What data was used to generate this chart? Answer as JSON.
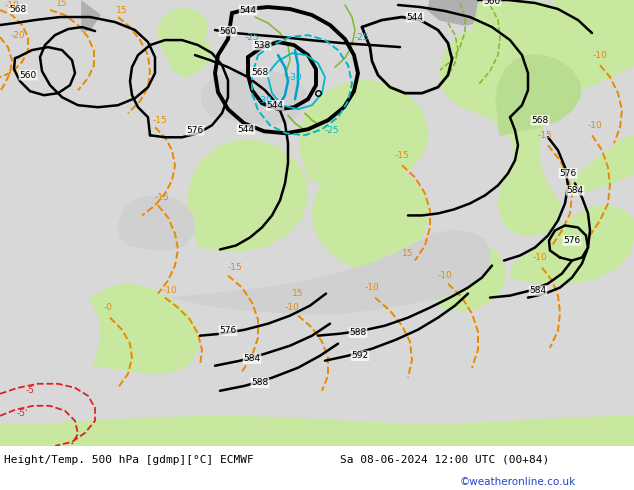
{
  "title_left": "Height/Temp. 500 hPa [gdmp][°C] ECMWF",
  "title_right": "Sa 08-06-2024 12:00 UTC (00+84)",
  "credit": "©weatheronline.co.uk",
  "fig_bg": "#c8c8c8",
  "map_bg": "#d8d8d8",
  "land_green": "#c8e8a0",
  "land_green2": "#b8dc90",
  "gray_land": "#b8b8b8",
  "sea_color": "#d8d8d8",
  "black": "#000000",
  "orange": "#e88a00",
  "red": "#dd2222",
  "cyan": "#00b8c8",
  "green": "#80b828",
  "figsize": [
    6.34,
    4.9
  ],
  "dpi": 100
}
